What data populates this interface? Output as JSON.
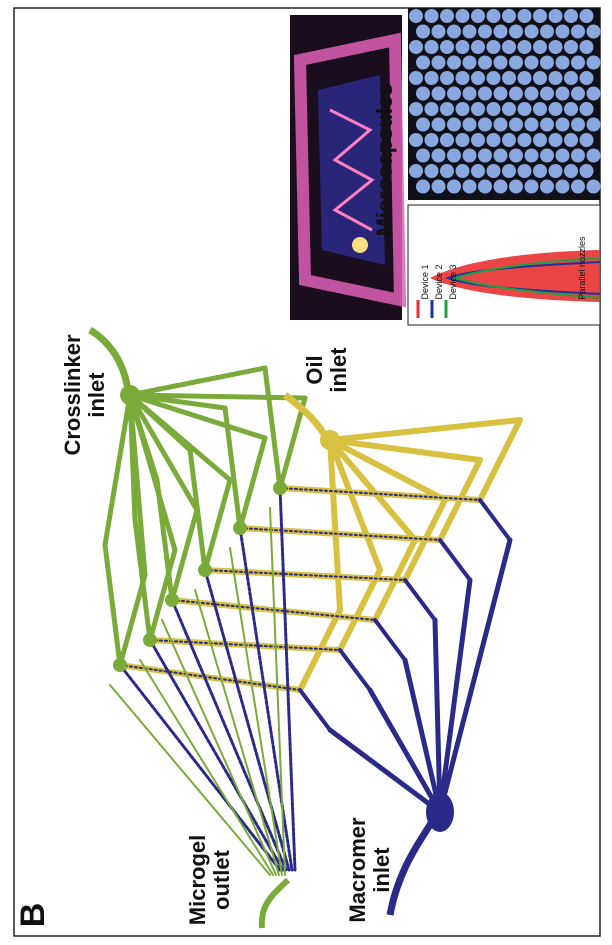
{
  "panel_label": "B",
  "labels": {
    "crosslinker": [
      "Crosslinker",
      "inlet"
    ],
    "oil": [
      "Oil",
      "inlet"
    ],
    "microgel": [
      "Microgel",
      "outlet"
    ],
    "macromer": [
      "Macromer",
      "inlet"
    ],
    "microcapsules": "Microcapsules"
  },
  "plot": {
    "axis_label": "Parallel nozzles",
    "legend": [
      "Device 1",
      "Device 2",
      "Device 3"
    ]
  }
}
